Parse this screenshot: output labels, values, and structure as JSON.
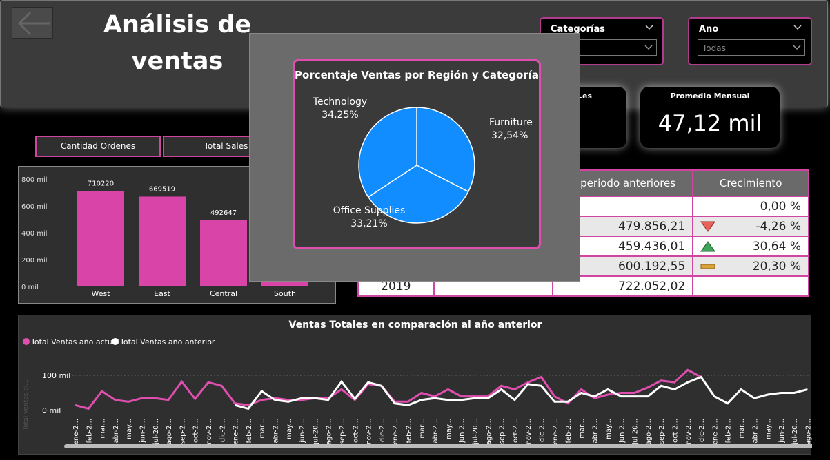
{
  "header": {
    "title_line1": "Análisis de",
    "title_line2": "ventas"
  },
  "slicers": [
    {
      "label": "Categorías",
      "value": ""
    },
    {
      "label": "Año",
      "value": "Todas"
    }
  ],
  "kpis": [
    {
      "label": "...es",
      "value": ""
    },
    {
      "label": "Promedio Mensual",
      "value": "47,12 mil"
    }
  ],
  "tabs": [
    "Cantidad Ordenes",
    "Total Sales"
  ],
  "bar_chart": {
    "type": "bar",
    "categories": [
      "West",
      "East",
      "Central",
      "South"
    ],
    "values": [
      710220,
      669519,
      492647,
      391722
    ],
    "data_labels": [
      "710220",
      "669519",
      "492647",
      ""
    ],
    "ytick_labels": [
      "800 mil",
      "600 mil",
      "400 mil",
      "200 mil",
      "0 mil"
    ],
    "ylim": [
      0,
      800000
    ],
    "bar_color": "#d944a8"
  },
  "growth_table": {
    "headers": [
      "",
      "",
      "nta periodo anteriores",
      "Crecimiento"
    ],
    "rows": [
      {
        "year": "",
        "c2": "",
        "prev": "",
        "growth": "0,00 %",
        "indicator": ""
      },
      {
        "year": "",
        "c2": "",
        "prev": "479.856,21",
        "growth": "-4,26 %",
        "indicator": "down"
      },
      {
        "year": "",
        "c2": "",
        "prev": "459.436,01",
        "growth": "30,64 %",
        "indicator": "up"
      },
      {
        "year": "",
        "c2": "",
        "prev": "600.192,55",
        "growth": "20,30 %",
        "indicator": "flat"
      },
      {
        "year": "2019",
        "c2": "",
        "prev": "722.052,02",
        "growth": "",
        "indicator": ""
      }
    ]
  },
  "line_chart": {
    "title": "Ventas Totales en comparación al año anterior",
    "legend": [
      "Total Ventas año actual",
      "Total Ventas año anterior"
    ],
    "ylabel": "Total ventas al...",
    "ytick_labels": [
      "100 mil",
      "0 mil"
    ],
    "x_labels": [
      "ene-2...",
      "feb-2...",
      "mar...",
      "abr-2...",
      "may...",
      "jun-2...",
      "jul-20...",
      "ago-2...",
      "sep-2...",
      "oct-2...",
      "nov-2...",
      "dic-2...",
      "ene-2...",
      "feb-2...",
      "mar...",
      "abr-2...",
      "may...",
      "jun-2...",
      "jul-20...",
      "ago-2...",
      "sep-2...",
      "oct-2...",
      "nov-2...",
      "dic-2...",
      "ene-2...",
      "feb-2...",
      "mar...",
      "abr-2...",
      "may...",
      "jun-2...",
      "jul-20...",
      "ago-2...",
      "sep-2...",
      "oct-2...",
      "nov-2...",
      "dic-2...",
      "ene-2...",
      "feb-2...",
      "mar...",
      "abr-2...",
      "may...",
      "jun-2...",
      "jul-20...",
      "ago-2...",
      "sep-2...",
      "oct-2...",
      "nov-2...",
      "dic-2...",
      "ene-2...",
      "feb-2...",
      "mar...",
      "abr-2...",
      "may...",
      "jun-2...",
      "jul-20...",
      "ago-2..."
    ],
    "series_current": [
      15,
      5,
      55,
      30,
      25,
      35,
      35,
      30,
      82,
      33,
      80,
      70,
      20,
      15,
      30,
      35,
      30,
      30,
      35,
      35,
      60,
      30,
      75,
      70,
      25,
      25,
      50,
      40,
      60,
      40,
      40,
      40,
      70,
      60,
      80,
      95,
      40,
      20,
      60,
      35,
      45,
      50,
      50,
      65,
      85,
      80,
      115,
      95
    ],
    "series_previous": [
      null,
      null,
      null,
      null,
      null,
      null,
      null,
      null,
      null,
      null,
      null,
      null,
      15,
      5,
      55,
      30,
      25,
      35,
      35,
      30,
      82,
      33,
      80,
      70,
      20,
      15,
      30,
      35,
      30,
      30,
      35,
      35,
      60,
      30,
      75,
      70,
      25,
      25,
      50,
      40,
      60,
      40,
      40,
      40,
      70,
      60,
      80,
      95,
      40,
      20,
      60,
      35,
      45,
      50,
      50,
      60
    ],
    "ylim": [
      0,
      140000
    ],
    "color_current": "#e04fb0",
    "color_previous": "#ffffff"
  },
  "pie_chart": {
    "type": "pie",
    "title": "Porcentaje Ventas por Región y Categoría",
    "slices": [
      {
        "label": "Furniture",
        "pct_label": "32,54%",
        "value": 32.54
      },
      {
        "label": "Office Supplies",
        "pct_label": "33,21%",
        "value": 33.21
      },
      {
        "label": "Technology",
        "pct_label": "34,25%",
        "value": 34.25
      }
    ],
    "color": "#118dff"
  }
}
